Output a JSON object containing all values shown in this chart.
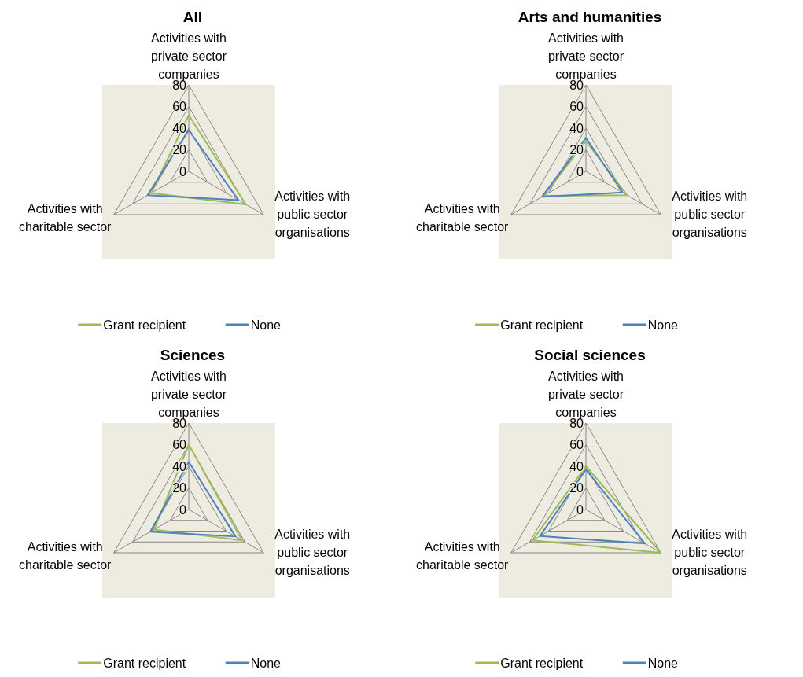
{
  "chart_data": [
    {
      "type": "radar",
      "title": "All",
      "categories": [
        "Activities with private sector companies",
        "Activities with public sector organisations",
        "Activities with charitable sector"
      ],
      "series": [
        {
          "name": "Grant recipient",
          "color": "#9bbb59",
          "values": [
            52,
            61,
            40
          ]
        },
        {
          "name": "None",
          "color": "#4f81bd",
          "values": [
            38,
            53,
            44
          ]
        }
      ],
      "ylim": [
        0,
        80
      ],
      "yticks": [
        0,
        20,
        40,
        60,
        80
      ],
      "grid": true,
      "legend": "bottom"
    },
    {
      "type": "radar",
      "title": "Arts and humanities",
      "categories": [
        "Activities with private sector companies",
        "Activities with public sector organisations",
        "Activities with charitable sector"
      ],
      "series": [
        {
          "name": "Grant recipient",
          "color": "#9bbb59",
          "values": [
            28,
            44,
            45
          ]
        },
        {
          "name": "None",
          "color": "#4f81bd",
          "values": [
            31,
            39,
            47
          ]
        }
      ],
      "ylim": [
        0,
        80
      ],
      "yticks": [
        0,
        20,
        40,
        60,
        80
      ],
      "grid": true,
      "legend": "bottom"
    },
    {
      "type": "radar",
      "title": "Sciences",
      "categories": [
        "Activities with private sector companies",
        "Activities with public sector organisations",
        "Activities with charitable sector"
      ],
      "series": [
        {
          "name": "Grant recipient",
          "color": "#9bbb59",
          "values": [
            60,
            57,
            37
          ]
        },
        {
          "name": "None",
          "color": "#4f81bd",
          "values": [
            44,
            50,
            41
          ]
        }
      ],
      "ylim": [
        0,
        80
      ],
      "yticks": [
        0,
        20,
        40,
        60,
        80
      ],
      "grid": true,
      "legend": "bottom"
    },
    {
      "type": "radar",
      "title": "Social sciences",
      "categories": [
        "Activities with private sector companies",
        "Activities with public sector organisations",
        "Activities with charitable sector"
      ],
      "series": [
        {
          "name": "Grant recipient",
          "color": "#9bbb59",
          "values": [
            40,
            80,
            57
          ]
        },
        {
          "name": "None",
          "color": "#4f81bd",
          "values": [
            37,
            63,
            49
          ]
        }
      ],
      "ylim": [
        0,
        80
      ],
      "yticks": [
        0,
        20,
        40,
        60,
        80
      ],
      "grid": true,
      "legend": "bottom"
    }
  ]
}
